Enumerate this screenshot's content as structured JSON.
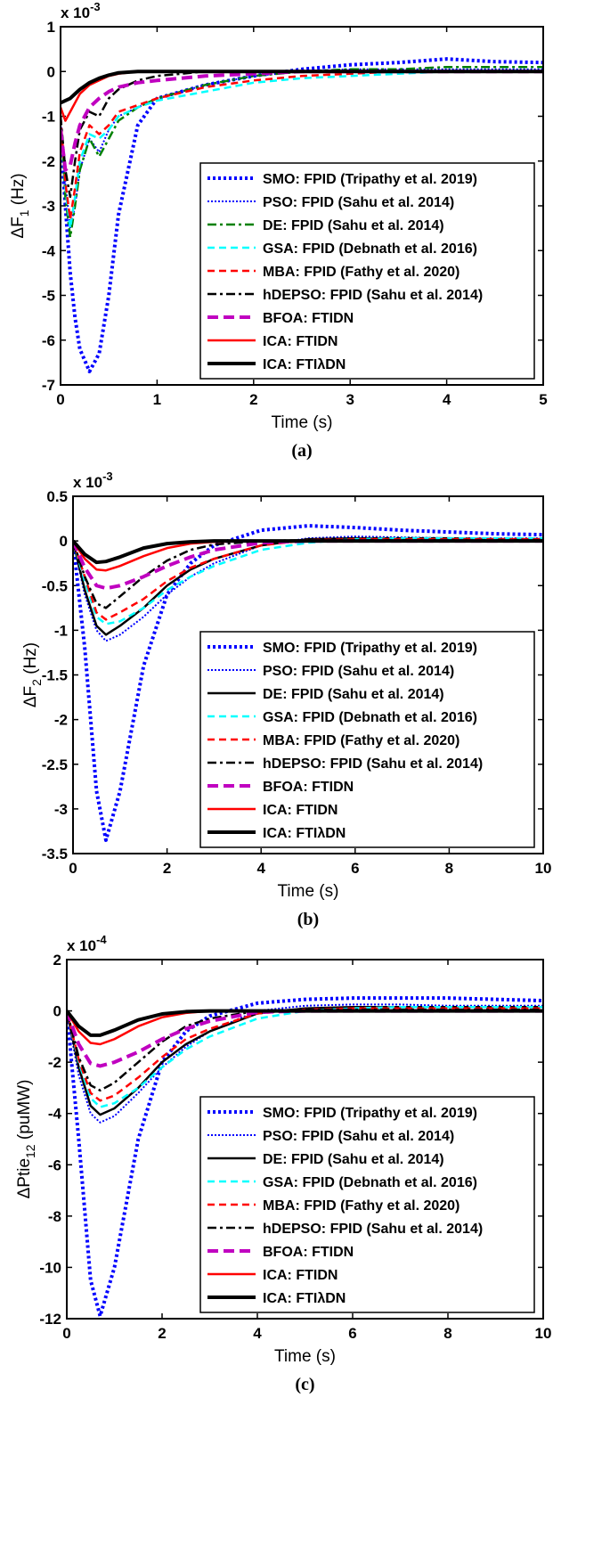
{
  "chart_data": [
    {
      "type": "line",
      "caption": "(a)",
      "xlabel": "Time (s)",
      "ylabel": {
        "main": "ΔF",
        "sub": "1",
        "unit": " (Hz)"
      },
      "multiplier": {
        "base": "x 10",
        "exponent": "-3"
      },
      "legend": "lower right",
      "xlim": [
        0,
        5
      ],
      "xticks": [
        0,
        1,
        2,
        3,
        4,
        5
      ],
      "ylim": [
        -7,
        1
      ],
      "yticks": [
        -7,
        -6,
        -5,
        -4,
        -3,
        -2,
        -1,
        0,
        1
      ],
      "x": [
        0,
        0.05,
        0.1,
        0.15,
        0.2,
        0.3,
        0.4,
        0.5,
        0.6,
        0.8,
        1,
        1.5,
        2,
        2.5,
        3,
        3.5,
        4,
        4.5,
        5
      ],
      "series": [
        {
          "name": "SMO: FPID (Tripathy et al. 2019)",
          "color": "#0000ff",
          "style": "dotted-thick",
          "values": [
            -1.5,
            -3,
            -4.5,
            -5.5,
            -6.2,
            -6.7,
            -6.3,
            -5,
            -3.2,
            -1.2,
            -0.6,
            -0.3,
            -0.1,
            0.05,
            0.15,
            0.2,
            0.28,
            0.22,
            0.2
          ]
        },
        {
          "name": "PSO: FPID (Sahu et al. 2014)",
          "color": "#0000ff",
          "style": "dotted",
          "values": [
            -1,
            -2.5,
            -3.5,
            -3,
            -2.2,
            -1.5,
            -1.8,
            -1.3,
            -1,
            -0.8,
            -0.6,
            -0.3,
            -0.1,
            0,
            0.05,
            0.05,
            0.05,
            0.05,
            0.05
          ]
        },
        {
          "name": "DE: FPID (Sahu et al. 2014)",
          "color": "#008000",
          "style": "dashdot",
          "values": [
            -1,
            -2.8,
            -3.7,
            -3,
            -2.2,
            -1.5,
            -1.9,
            -1.5,
            -1.1,
            -0.8,
            -0.6,
            -0.3,
            -0.1,
            0,
            0.05,
            0.05,
            0.1,
            0.1,
            0.1
          ]
        },
        {
          "name": "GSA: FPID (Debnath et al. 2016)",
          "color": "#00ffff",
          "style": "dashed",
          "values": [
            -1,
            -2.6,
            -3.5,
            -2.8,
            -2,
            -1.4,
            -1.5,
            -1.3,
            -1,
            -0.8,
            -0.65,
            -0.45,
            -0.25,
            -0.15,
            -0.1,
            -0.05,
            0,
            0,
            0
          ]
        },
        {
          "name": "MBA: FPID (Fathy et al. 2020)",
          "color": "#ff0000",
          "style": "dashed",
          "values": [
            -1,
            -2.5,
            -3.3,
            -2.6,
            -1.8,
            -1.2,
            -1.4,
            -1.2,
            -0.9,
            -0.75,
            -0.6,
            -0.35,
            -0.2,
            -0.1,
            -0.05,
            0,
            0,
            0,
            0
          ]
        },
        {
          "name": "hDEPSO: FPID (Sahu et al. 2014)",
          "color": "#000000",
          "style": "dashdot",
          "values": [
            -1,
            -2.2,
            -2.8,
            -2,
            -1.3,
            -0.9,
            -1,
            -0.6,
            -0.4,
            -0.2,
            -0.1,
            0,
            0,
            0,
            0,
            0,
            0,
            0,
            0
          ]
        },
        {
          "name": "BFOA: FTIDN",
          "color": "#c000c0",
          "style": "dashed-thick",
          "values": [
            -1.3,
            -2.2,
            -2.1,
            -1.6,
            -1.2,
            -0.8,
            -0.6,
            -0.45,
            -0.35,
            -0.25,
            -0.2,
            -0.1,
            -0.05,
            0,
            0,
            0,
            0,
            0,
            0
          ]
        },
        {
          "name": "ICA: FTIDN",
          "color": "#ff0000",
          "style": "solid",
          "values": [
            -0.8,
            -1.1,
            -0.9,
            -0.7,
            -0.5,
            -0.3,
            -0.2,
            -0.1,
            -0.05,
            0,
            0,
            0,
            0,
            0,
            0,
            0,
            0,
            0,
            0
          ]
        },
        {
          "name": "ICA: FTIλDN",
          "color": "#000000",
          "style": "solid-thick",
          "values": [
            -0.7,
            -0.65,
            -0.6,
            -0.5,
            -0.4,
            -0.25,
            -0.15,
            -0.08,
            -0.03,
            0,
            0,
            0,
            0,
            0,
            0,
            0,
            0,
            0,
            0
          ]
        }
      ]
    },
    {
      "type": "line",
      "caption": "(b)",
      "xlabel": "Time (s)",
      "ylabel": {
        "main": "ΔF",
        "sub": "2",
        "unit": " (Hz)"
      },
      "multiplier": {
        "base": "x 10",
        "exponent": "-3"
      },
      "legend": "lower right",
      "xlim": [
        0,
        10
      ],
      "xticks": [
        0,
        2,
        4,
        6,
        8,
        10
      ],
      "ylim": [
        -3.5,
        0.5
      ],
      "yticks": [
        -3.5,
        -3,
        -2.5,
        -2,
        -1.5,
        -1,
        -0.5,
        0,
        0.5
      ],
      "x": [
        0,
        0.25,
        0.5,
        0.7,
        1,
        1.5,
        2,
        2.5,
        3,
        4,
        5,
        6,
        7,
        8,
        9,
        10
      ],
      "series": [
        {
          "name": "SMO: FPID (Tripathy et al. 2019)",
          "color": "#0000ff",
          "style": "dotted-thick",
          "values": [
            0,
            -1.2,
            -2.8,
            -3.35,
            -2.8,
            -1.4,
            -0.6,
            -0.25,
            -0.05,
            0.12,
            0.17,
            0.15,
            0.12,
            0.1,
            0.08,
            0.07
          ]
        },
        {
          "name": "PSO: FPID (Sahu et al. 2014)",
          "color": "#0000ff",
          "style": "dotted",
          "values": [
            0,
            -0.6,
            -1,
            -1.12,
            -1.05,
            -0.85,
            -0.6,
            -0.4,
            -0.25,
            -0.05,
            0.03,
            0.05,
            0.04,
            0.03,
            0.03,
            0.03
          ]
        },
        {
          "name": "DE: FPID (Sahu et al. 2014)",
          "color": "#000000",
          "style": "solid",
          "values": [
            0,
            -0.55,
            -0.95,
            -1.05,
            -0.95,
            -0.75,
            -0.5,
            -0.32,
            -0.2,
            -0.05,
            0.02,
            0.03,
            0.03,
            0.03,
            0.02,
            0.02
          ]
        },
        {
          "name": "GSA: FPID (Debnath et al. 2016)",
          "color": "#00ffff",
          "style": "dashed",
          "values": [
            0,
            -0.45,
            -0.85,
            -0.93,
            -0.9,
            -0.75,
            -0.55,
            -0.4,
            -0.28,
            -0.1,
            -0.02,
            0.02,
            0.03,
            0.03,
            0.03,
            0.03
          ]
        },
        {
          "name": "MBA: FPID (Fathy et al. 2020)",
          "color": "#ff0000",
          "style": "dashed",
          "values": [
            0,
            -0.4,
            -0.8,
            -0.88,
            -0.8,
            -0.65,
            -0.45,
            -0.3,
            -0.2,
            -0.05,
            0.01,
            0.02,
            0.02,
            0.02,
            0.02,
            0.02
          ]
        },
        {
          "name": "hDEPSO: FPID (Sahu et al. 2014)",
          "color": "#000000",
          "style": "dashdot",
          "values": [
            0,
            -0.4,
            -0.7,
            -0.75,
            -0.62,
            -0.4,
            -0.22,
            -0.1,
            -0.04,
            0,
            0.01,
            0.01,
            0.01,
            0.01,
            0.01,
            0.01
          ]
        },
        {
          "name": "BFOA: FTIDN",
          "color": "#c000c0",
          "style": "dashed-thick",
          "values": [
            0,
            -0.3,
            -0.5,
            -0.53,
            -0.5,
            -0.4,
            -0.28,
            -0.18,
            -0.1,
            -0.02,
            0,
            0,
            0,
            0,
            0,
            0
          ]
        },
        {
          "name": "ICA: FTIDN",
          "color": "#ff0000",
          "style": "solid",
          "values": [
            0,
            -0.2,
            -0.32,
            -0.33,
            -0.28,
            -0.17,
            -0.08,
            -0.03,
            -0.01,
            0,
            0,
            0,
            0,
            0,
            0,
            0
          ]
        },
        {
          "name": "ICA: FTIλDN",
          "color": "#000000",
          "style": "solid-thick",
          "values": [
            0,
            -0.15,
            -0.24,
            -0.23,
            -0.18,
            -0.08,
            -0.03,
            -0.01,
            0,
            0,
            0,
            0,
            0,
            0,
            0,
            0
          ]
        }
      ]
    },
    {
      "type": "line",
      "caption": "(c)",
      "xlabel": "Time (s)",
      "ylabel": {
        "main": "ΔPtie",
        "sub": "12",
        "unit": " (puMW)"
      },
      "multiplier": {
        "base": "x 10",
        "exponent": "-4"
      },
      "legend": "lower right",
      "xlim": [
        0,
        10
      ],
      "xticks": [
        0,
        2,
        4,
        6,
        8,
        10
      ],
      "ylim": [
        -12,
        2
      ],
      "yticks": [
        -12,
        -10,
        -8,
        -6,
        -4,
        -2,
        0,
        2
      ],
      "x": [
        0,
        0.25,
        0.5,
        0.7,
        1,
        1.5,
        2,
        2.5,
        3,
        4,
        5,
        6,
        7,
        8,
        9,
        10
      ],
      "series": [
        {
          "name": "SMO: FPID (Tripathy et al. 2019)",
          "color": "#0000ff",
          "style": "dotted-thick",
          "values": [
            0,
            -5,
            -10.5,
            -11.9,
            -10,
            -5,
            -2,
            -0.8,
            -0.2,
            0.3,
            0.45,
            0.5,
            0.5,
            0.5,
            0.45,
            0.4
          ]
        },
        {
          "name": "PSO: FPID (Sahu et al. 2014)",
          "color": "#0000ff",
          "style": "dotted",
          "values": [
            0,
            -2.5,
            -4,
            -4.35,
            -4.1,
            -3.2,
            -2.2,
            -1.4,
            -0.8,
            0,
            0.2,
            0.25,
            0.25,
            0.2,
            0.2,
            0.2
          ]
        },
        {
          "name": "DE: FPID (Sahu et al. 2014)",
          "color": "#000000",
          "style": "solid",
          "values": [
            0,
            -2.2,
            -3.7,
            -4.05,
            -3.8,
            -3,
            -2,
            -1.3,
            -0.8,
            -0.1,
            0.1,
            0.15,
            0.15,
            0.15,
            0.15,
            0.15
          ]
        },
        {
          "name": "GSA: FPID (Debnath et al. 2016)",
          "color": "#00ffff",
          "style": "dashed",
          "values": [
            0,
            -2,
            -3.4,
            -3.75,
            -3.6,
            -3,
            -2.2,
            -1.5,
            -1,
            -0.3,
            0,
            0.1,
            0.15,
            0.15,
            0.15,
            0.15
          ]
        },
        {
          "name": "MBA: FPID (Fathy et al. 2020)",
          "color": "#ff0000",
          "style": "dashed",
          "values": [
            0,
            -1.9,
            -3.2,
            -3.5,
            -3.3,
            -2.6,
            -1.8,
            -1.1,
            -0.7,
            -0.1,
            0.05,
            0.1,
            0.1,
            0.1,
            0.1,
            0.1
          ]
        },
        {
          "name": "hDEPSO: FPID (Sahu et al. 2014)",
          "color": "#000000",
          "style": "dashdot",
          "values": [
            0,
            -1.8,
            -2.9,
            -3.1,
            -2.8,
            -2,
            -1.2,
            -0.6,
            -0.3,
            0,
            0.05,
            0.05,
            0.05,
            0.05,
            0.05,
            0.05
          ]
        },
        {
          "name": "BFOA: FTIDN",
          "color": "#c000c0",
          "style": "dashed-thick",
          "values": [
            0,
            -1.3,
            -2.05,
            -2.15,
            -2,
            -1.6,
            -1.1,
            -0.7,
            -0.4,
            -0.05,
            0,
            0,
            0,
            0,
            0,
            0
          ]
        },
        {
          "name": "ICA: FTIDN",
          "color": "#ff0000",
          "style": "solid",
          "values": [
            0,
            -0.8,
            -1.25,
            -1.3,
            -1.1,
            -0.6,
            -0.25,
            -0.08,
            0,
            0,
            0,
            0,
            0,
            0,
            0,
            0
          ]
        },
        {
          "name": "ICA: FTIλDN",
          "color": "#000000",
          "style": "solid-thick",
          "values": [
            0,
            -0.6,
            -0.95,
            -0.95,
            -0.75,
            -0.35,
            -0.12,
            -0.03,
            0,
            0,
            0,
            0,
            0,
            0,
            0,
            0
          ]
        }
      ]
    }
  ]
}
